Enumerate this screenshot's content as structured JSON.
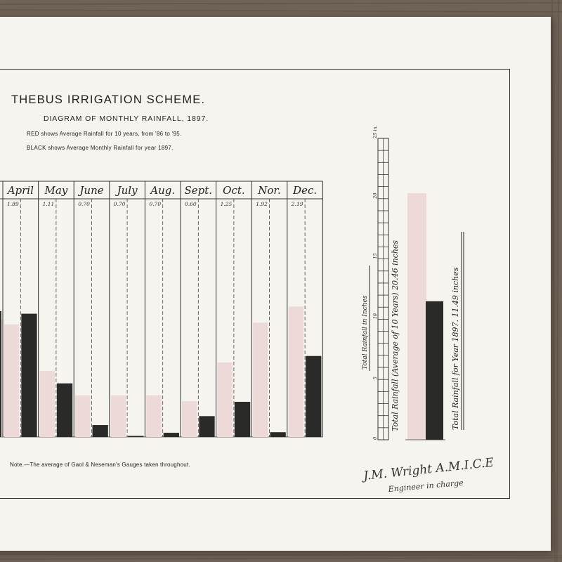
{
  "document": {
    "title": "THEBUS IRRIGATION SCHEME.",
    "subtitle": "DIAGRAM OF MONTHLY RAINFALL, 1897.",
    "legend_red": "RED shows Average Rainfall for 10 years, from '86 to '95.",
    "legend_black": "BLACK shows Average Monthly Rainfall for year 1897.",
    "note": "Note.—The average of Gaol & Neseman's Gauges taken throughout.",
    "signature_line1": "J.M. Wright  A.M.I.C.E",
    "signature_line2": "Engineer in charge"
  },
  "colors": {
    "average_bar": "#ecd9d8",
    "year_1897_bar": "#2a2a28",
    "paper": "#f6f4ef",
    "ink": "#222222"
  },
  "chart_data": [
    {
      "type": "bar",
      "title": "DIAGRAM OF MONTHLY RAINFALL, 1897.",
      "categories": [
        "April",
        "May",
        "June",
        "July",
        "Aug.",
        "Sept.",
        "Oct.",
        "Nor.",
        "Dec."
      ],
      "value_labels": [
        "1.89",
        "1.11",
        "0.70",
        "0.70",
        "0.70",
        "0.60",
        "1.25",
        "1.92",
        "2.19"
      ],
      "series": [
        {
          "name": "Average Rainfall for 10 years, from '86 to '95",
          "color": "#ecd9d8",
          "values": [
            1.89,
            1.11,
            0.7,
            0.7,
            0.7,
            0.6,
            1.25,
            1.92,
            2.19
          ]
        },
        {
          "name": "Average Monthly Rainfall for year 1897",
          "values": [
            2.07,
            0.9,
            0.2,
            0.0,
            0.07,
            0.35,
            0.59,
            0.08,
            1.36
          ]
        }
      ],
      "ylim": [
        0,
        4.0
      ],
      "grid": false
    },
    {
      "type": "bar",
      "categories": [
        "Average of 10 Years",
        "Year 1897"
      ],
      "values": [
        20.46,
        11.49
      ],
      "label_ten_years": "Total Rainfall (Average of 10 Years) 20.46 inches",
      "label_year": "Total Rainfall for Year 1897. 11.49 inches",
      "ylabel": "Total Rainfall in Inches",
      "yticks": [
        "0",
        "5",
        "10",
        "15",
        "20",
        "25 in."
      ],
      "ylim": [
        0,
        25
      ]
    }
  ]
}
